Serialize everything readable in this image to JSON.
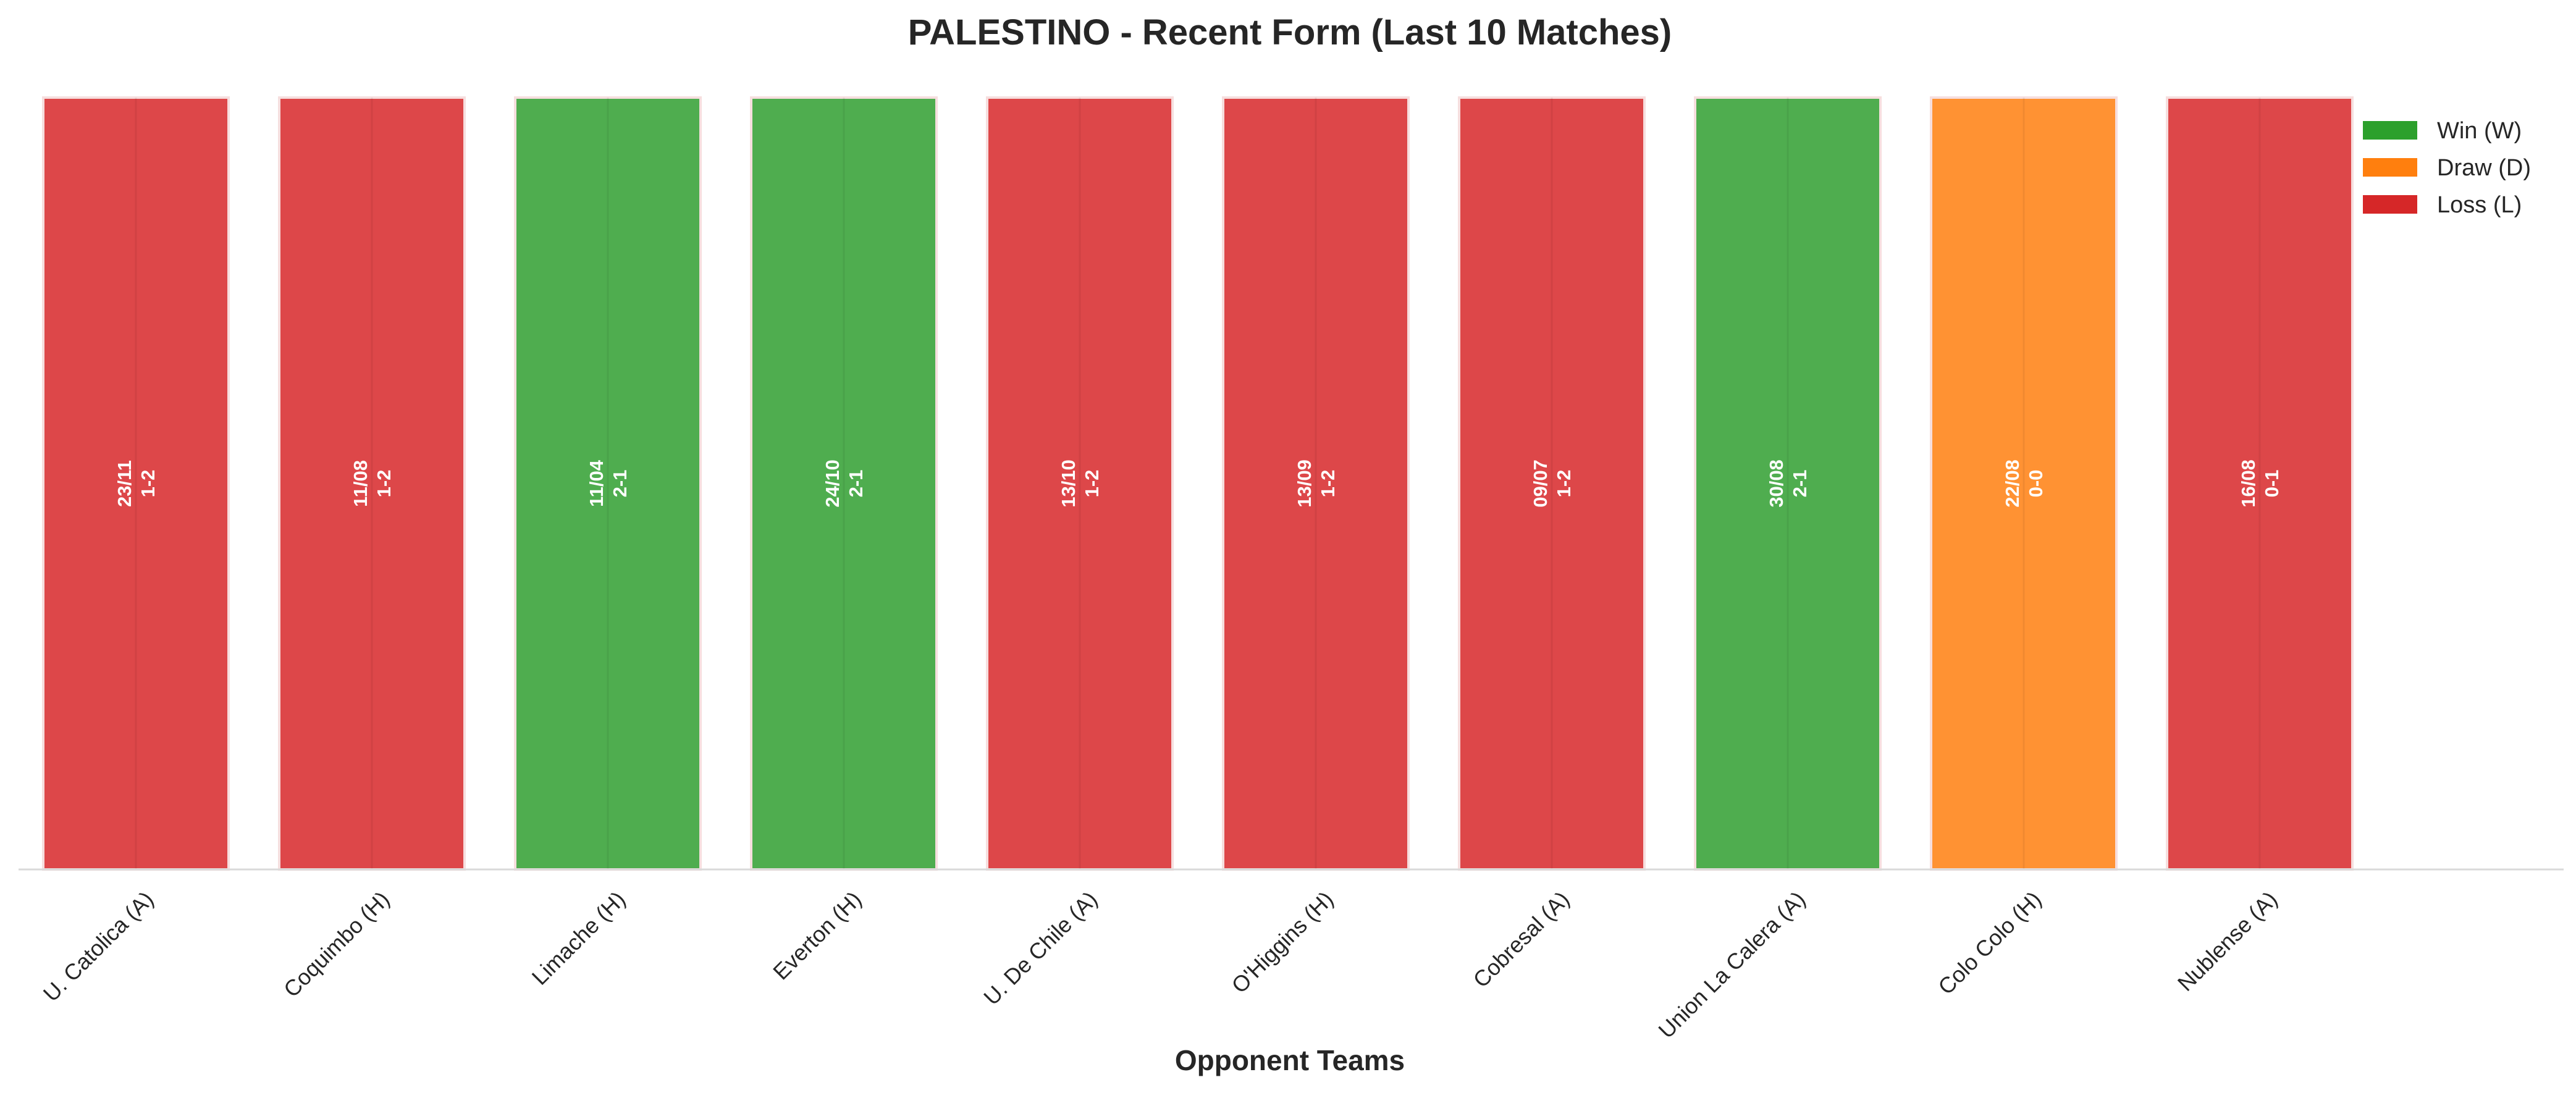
{
  "chart_data": {
    "type": "bar",
    "title": "PALESTINO - Recent Form (Last 10 Matches)",
    "xlabel": "Opponent Teams",
    "ylabel": "",
    "grid": false,
    "legend_position": "top-right",
    "categories": [
      "U. Catolica (A)",
      "Coquimbo (H)",
      "Limache (H)",
      "Everton (H)",
      "U. De Chile (A)",
      "O'Higgins (H)",
      "Cobresal (A)",
      "Union La Calera (A)",
      "Colo Colo (H)",
      "Nublense (A)"
    ],
    "values": [
      1,
      1,
      1,
      1,
      1,
      1,
      1,
      1,
      1,
      1
    ],
    "results": [
      "L",
      "L",
      "W",
      "W",
      "L",
      "L",
      "L",
      "W",
      "D",
      "L"
    ],
    "dates": [
      "23/11",
      "11/08",
      "11/04",
      "24/10",
      "13/10",
      "13/09",
      "09/07",
      "30/08",
      "22/08",
      "16/08"
    ],
    "scores": [
      "1-2",
      "1-2",
      "2-1",
      "2-1",
      "1-2",
      "1-2",
      "1-2",
      "2-1",
      "0-0",
      "0-1"
    ],
    "ylim": [
      0,
      1
    ],
    "legend": [
      {
        "key": "W",
        "label": "Win (W)",
        "color": "#2ca02c"
      },
      {
        "key": "D",
        "label": "Draw (D)",
        "color": "#ff7f0e"
      },
      {
        "key": "L",
        "label": "Loss (L)",
        "color": "#d62728"
      }
    ],
    "colors": {
      "W": "#4fad4f",
      "D": "#ff9233",
      "L": "#dd4749"
    }
  }
}
